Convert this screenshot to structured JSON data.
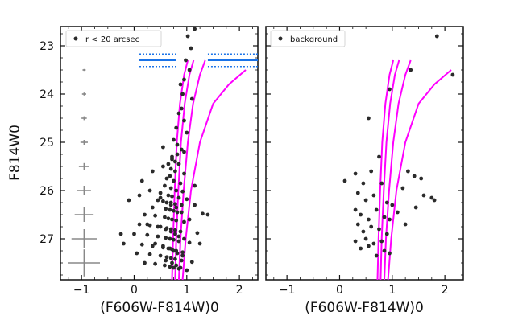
{
  "chart_data": [
    {
      "type": "scatter",
      "title": "",
      "xlabel": "(F606W-F814W)0",
      "ylabel": "F814W0",
      "xlim": [
        -1.4,
        2.35
      ],
      "ylim": [
        27.85,
        22.6
      ],
      "y_inverted": true,
      "x_ticks": [
        -1,
        0,
        1,
        2
      ],
      "y_ticks": [
        23,
        24,
        25,
        26,
        27
      ],
      "legend": {
        "location": "top-left",
        "label": "r < 20 arcsec"
      },
      "series": [
        {
          "name": "r < 20 arcsec",
          "color": "#2b2b2b",
          "x": [
            1.15,
            1.02,
            0.98,
            1.08,
            1.05,
            0.95,
            0.88,
            0.92,
            1.1,
            0.9,
            0.85,
            0.95,
            0.8,
            1.0,
            0.75,
            0.82,
            0.9,
            0.55,
            0.72,
            0.78,
            0.85,
            0.7,
            0.78,
            0.95,
            0.68,
            0.62,
            0.75,
            0.88,
            0.58,
            0.7,
            0.8,
            0.92,
            0.5,
            0.65,
            0.72,
            0.85,
            1.0,
            0.45,
            0.55,
            0.7,
            0.78,
            0.9,
            1.15,
            0.35,
            0.6,
            0.68,
            0.75,
            0.82,
            1.3,
            0.2,
            0.4,
            0.58,
            0.65,
            0.72,
            0.8,
            0.95,
            1.4,
            0.1,
            0.3,
            0.5,
            0.62,
            0.7,
            0.78,
            0.88,
            1.2,
            0.0,
            0.25,
            0.45,
            0.6,
            0.68,
            0.75,
            0.85,
            1.05,
            -0.2,
            0.15,
            0.35,
            0.55,
            0.65,
            0.72,
            0.8,
            0.92,
            1.25,
            0.05,
            0.3,
            0.5,
            0.62,
            0.7,
            0.78,
            0.9,
            1.1,
            -0.25,
            0.2,
            0.4,
            0.58,
            0.68,
            0.75,
            0.85,
            1.0,
            -0.1,
            0.15,
            0.35,
            0.55,
            0.65,
            0.72,
            0.82,
            0.95,
            1.15,
            0.1,
            0.3,
            0.5,
            0.62,
            0.7,
            0.8,
            0.9,
            1.05,
            0.25,
            0.45,
            0.6,
            0.7,
            0.78,
            0.85,
            0.95,
            0.4,
            0.55,
            0.68,
            0.75,
            0.82,
            0.92,
            0.6,
            0.72,
            0.8,
            0.88
          ],
          "y": [
            22.65,
            22.8,
            23.3,
            23.05,
            23.5,
            23.7,
            23.8,
            24.0,
            24.1,
            24.3,
            24.4,
            24.55,
            24.7,
            24.8,
            24.95,
            25.05,
            25.15,
            25.1,
            25.3,
            25.4,
            25.45,
            25.55,
            25.6,
            25.65,
            25.7,
            25.75,
            25.8,
            25.85,
            25.9,
            25.95,
            26.0,
            26.02,
            26.05,
            26.1,
            26.12,
            26.15,
            26.18,
            26.2,
            26.22,
            26.25,
            26.28,
            26.3,
            26.3,
            26.35,
            26.38,
            26.4,
            26.42,
            26.45,
            26.48,
            26.5,
            26.52,
            26.55,
            26.58,
            26.6,
            26.62,
            26.65,
            26.5,
            26.7,
            26.72,
            26.75,
            26.78,
            26.8,
            26.82,
            26.85,
            26.88,
            26.9,
            26.92,
            26.95,
            26.98,
            27.0,
            27.02,
            27.05,
            27.08,
            27.1,
            27.12,
            27.15,
            27.18,
            27.2,
            27.22,
            27.25,
            27.28,
            27.1,
            27.3,
            27.32,
            27.35,
            27.38,
            27.4,
            27.42,
            27.45,
            27.48,
            26.9,
            27.5,
            27.52,
            27.55,
            27.58,
            27.6,
            27.62,
            27.65,
            26.2,
            25.8,
            25.6,
            25.5,
            25.45,
            25.35,
            25.25,
            25.2,
            25.9,
            26.1,
            26.0,
            26.15,
            26.25,
            26.3,
            26.35,
            26.45,
            26.6,
            26.7,
            26.75,
            26.8,
            26.85,
            26.9,
            26.95,
            27.0,
            27.1,
            27.15,
            27.2,
            27.25,
            27.3,
            27.35,
            27.45,
            27.5,
            27.55,
            27.6
          ]
        }
      ],
      "error_bars": {
        "x": -0.95,
        "y": [
          23.0,
          23.5,
          24.0,
          24.5,
          25.0,
          25.5,
          26.0,
          26.5,
          27.0,
          27.5
        ],
        "xerr": [
          0.02,
          0.03,
          0.04,
          0.05,
          0.07,
          0.1,
          0.13,
          0.18,
          0.24,
          0.3
        ],
        "yerr": [
          0.02,
          0.02,
          0.03,
          0.04,
          0.05,
          0.07,
          0.1,
          0.15,
          0.2,
          0.28
        ]
      },
      "limit_lines": {
        "y": 23.3,
        "y_spread": [
          23.17,
          23.43
        ],
        "segments": [
          [
            0.1,
            0.8
          ],
          [
            1.4,
            2.35
          ]
        ],
        "color": "#1a73e8"
      },
      "isochrones": {
        "color": "#ff00ff",
        "curves": [
          {
            "x": [
              0.72,
              0.74,
              0.77,
              0.81,
              0.87,
              0.95,
              1.02
            ],
            "y": [
              27.85,
              27.0,
              26.0,
              25.0,
              24.2,
              23.6,
              23.3
            ]
          },
          {
            "x": [
              0.78,
              0.8,
              0.84,
              0.89,
              0.96,
              1.05,
              1.13
            ],
            "y": [
              27.85,
              27.0,
              26.0,
              25.0,
              24.2,
              23.6,
              23.3
            ]
          },
          {
            "x": [
              0.85,
              0.88,
              0.94,
              1.02,
              1.12,
              1.25,
              1.35
            ],
            "y": [
              27.85,
              27.0,
              26.0,
              25.0,
              24.2,
              23.6,
              23.3
            ]
          },
          {
            "x": [
              0.92,
              0.98,
              1.08,
              1.25,
              1.5,
              1.8,
              2.12
            ],
            "y": [
              27.85,
              27.0,
              26.0,
              25.0,
              24.2,
              23.8,
              23.5
            ]
          }
        ]
      }
    },
    {
      "type": "scatter",
      "title": "",
      "xlabel": "(F606W-F814W)0",
      "ylabel": "",
      "xlim": [
        -1.4,
        2.35
      ],
      "ylim": [
        27.85,
        22.6
      ],
      "y_inverted": true,
      "x_ticks": [
        -1,
        0,
        1,
        2
      ],
      "legend": {
        "location": "top-left",
        "label": "background"
      },
      "series": [
        {
          "name": "background",
          "color": "#2b2b2b",
          "x": [
            1.85,
            2.15,
            1.35,
            0.95,
            0.55,
            0.75,
            0.6,
            0.3,
            1.3,
            1.42,
            1.55,
            0.45,
            0.8,
            1.2,
            0.1,
            0.35,
            0.65,
            1.6,
            1.75,
            1.8,
            0.5,
            0.9,
            1.0,
            1.45,
            0.3,
            0.7,
            1.1,
            0.4,
            0.85,
            0.55,
            0.95,
            0.35,
            0.6,
            0.75,
            0.45,
            0.9,
            0.5,
            0.8,
            0.3,
            0.65,
            0.55,
            0.4,
            0.85,
            0.95,
            0.7,
            1.25
          ],
          "y": [
            22.8,
            23.6,
            23.5,
            23.9,
            24.5,
            25.3,
            25.6,
            25.65,
            25.6,
            25.7,
            25.75,
            25.85,
            25.85,
            25.95,
            25.8,
            26.05,
            26.1,
            26.1,
            26.15,
            26.2,
            26.2,
            26.25,
            26.3,
            26.35,
            26.4,
            26.4,
            26.45,
            26.5,
            26.55,
            26.6,
            26.6,
            26.7,
            26.75,
            26.8,
            26.85,
            26.9,
            27.0,
            27.05,
            27.05,
            27.1,
            27.15,
            27.2,
            27.25,
            27.3,
            27.35,
            26.7
          ]
        }
      ],
      "isochrones": {
        "color": "#ff00ff",
        "curves": [
          {
            "x": [
              0.72,
              0.74,
              0.77,
              0.81,
              0.87,
              0.95,
              1.02
            ],
            "y": [
              27.85,
              27.0,
              26.0,
              25.0,
              24.2,
              23.6,
              23.3
            ]
          },
          {
            "x": [
              0.78,
              0.8,
              0.84,
              0.89,
              0.96,
              1.05,
              1.13
            ],
            "y": [
              27.85,
              27.0,
              26.0,
              25.0,
              24.2,
              23.6,
              23.3
            ]
          },
          {
            "x": [
              0.85,
              0.88,
              0.94,
              1.02,
              1.12,
              1.25,
              1.35
            ],
            "y": [
              27.85,
              27.0,
              26.0,
              25.0,
              24.2,
              23.6,
              23.3
            ]
          },
          {
            "x": [
              0.92,
              0.98,
              1.08,
              1.25,
              1.5,
              1.8,
              2.12
            ],
            "y": [
              27.85,
              27.0,
              26.0,
              25.0,
              24.2,
              23.8,
              23.5
            ]
          }
        ]
      }
    }
  ]
}
